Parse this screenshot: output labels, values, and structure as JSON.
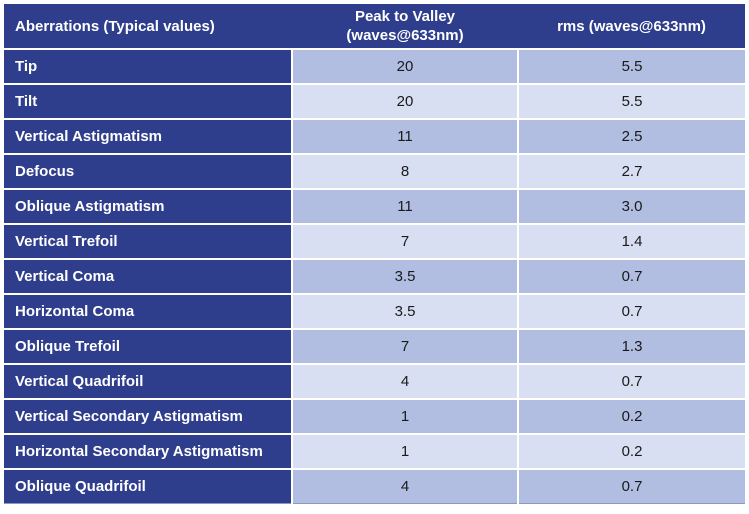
{
  "colors": {
    "navy": "#2f3e8c",
    "row_shade_dark": "#b1bee2",
    "row_shade_light": "#d9dff2",
    "header_text": "#ffffff",
    "value_text": "#1a1a1a",
    "separator": "#ffffff"
  },
  "table": {
    "header": {
      "col1": "Aberrations (Typical values)",
      "col2_line1": "Peak to Valley",
      "col2_line2": "(waves@633nm)",
      "col3": "rms (waves@633nm)"
    },
    "rows": [
      {
        "name": "Tip",
        "pv": "20",
        "rms": "5.5"
      },
      {
        "name": "Tilt",
        "pv": "20",
        "rms": "5.5"
      },
      {
        "name": "Vertical Astigmatism",
        "pv": "11",
        "rms": "2.5"
      },
      {
        "name": "Defocus",
        "pv": "8",
        "rms": "2.7"
      },
      {
        "name": "Oblique Astigmatism",
        "pv": "11",
        "rms": "3.0"
      },
      {
        "name": "Vertical Trefoil",
        "pv": "7",
        "rms": "1.4"
      },
      {
        "name": "Vertical Coma",
        "pv": "3.5",
        "rms": "0.7"
      },
      {
        "name": "Horizontal Coma",
        "pv": "3.5",
        "rms": "0.7"
      },
      {
        "name": "Oblique Trefoil",
        "pv": "7",
        "rms": "1.3"
      },
      {
        "name": "Vertical Quadrifoil",
        "pv": "4",
        "rms": "0.7"
      },
      {
        "name": "Vertical Secondary Astigmatism",
        "pv": "1",
        "rms": "0.2"
      },
      {
        "name": "Horizontal Secondary Astigmatism",
        "pv": "1",
        "rms": "0.2"
      },
      {
        "name": "Oblique Quadrifoil",
        "pv": "4",
        "rms": "0.7"
      }
    ]
  },
  "chart_data": {
    "type": "table",
    "title": "Aberrations (Typical values)",
    "columns": [
      "Aberrations (Typical values)",
      "Peak to Valley (waves@633nm)",
      "rms (waves@633nm)"
    ],
    "rows": [
      [
        "Tip",
        20,
        5.5
      ],
      [
        "Tilt",
        20,
        5.5
      ],
      [
        "Vertical Astigmatism",
        11,
        2.5
      ],
      [
        "Defocus",
        8,
        2.7
      ],
      [
        "Oblique Astigmatism",
        11,
        3.0
      ],
      [
        "Vertical Trefoil",
        7,
        1.4
      ],
      [
        "Vertical Coma",
        3.5,
        0.7
      ],
      [
        "Horizontal Coma",
        3.5,
        0.7
      ],
      [
        "Oblique Trefoil",
        7,
        1.3
      ],
      [
        "Vertical Quadrifoil",
        4,
        0.7
      ],
      [
        "Vertical Secondary Astigmatism",
        1,
        0.2
      ],
      [
        "Horizontal Secondary Astigmatism",
        1,
        0.2
      ],
      [
        "Oblique Quadrifoil",
        4,
        0.7
      ]
    ],
    "layout": {
      "value_columns_aligned": "center",
      "name_column_aligned": "left",
      "row_striping": "alternating"
    }
  }
}
